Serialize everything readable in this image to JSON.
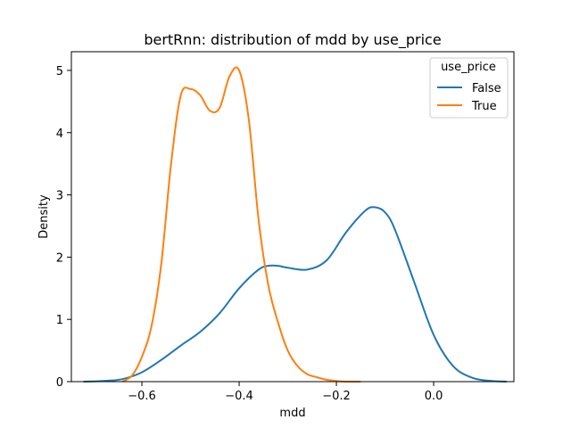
{
  "chart_data": {
    "type": "line",
    "title": "bertRnn: distribution of mdd by use_price",
    "xlabel": "mdd",
    "ylabel": "Density",
    "xlim": [
      -0.745,
      0.165
    ],
    "ylim": [
      0,
      5.3
    ],
    "xticks": [
      -0.6,
      -0.4,
      -0.2,
      0.0
    ],
    "xtick_labels": [
      "−0.6",
      "−0.4",
      "−0.2",
      "0.0"
    ],
    "yticks": [
      0,
      1,
      2,
      3,
      4,
      5
    ],
    "ytick_labels": [
      "0",
      "1",
      "2",
      "3",
      "4",
      "5"
    ],
    "grid": false,
    "legend": {
      "title": "use_price",
      "position": "top-right"
    },
    "series": [
      {
        "name": "False",
        "color": "#1f77b4",
        "x": [
          -0.72,
          -0.68,
          -0.64,
          -0.6,
          -0.56,
          -0.52,
          -0.48,
          -0.44,
          -0.4,
          -0.36,
          -0.34,
          -0.32,
          -0.3,
          -0.26,
          -0.22,
          -0.18,
          -0.14,
          -0.12,
          -0.1,
          -0.08,
          -0.04,
          0.0,
          0.04,
          0.08,
          0.12,
          0.15
        ],
        "y": [
          0.0,
          0.01,
          0.04,
          0.15,
          0.35,
          0.58,
          0.8,
          1.1,
          1.5,
          1.8,
          1.86,
          1.86,
          1.83,
          1.8,
          1.95,
          2.4,
          2.75,
          2.8,
          2.72,
          2.45,
          1.6,
          0.75,
          0.25,
          0.06,
          0.01,
          0.0
        ]
      },
      {
        "name": "True",
        "color": "#ff7f0e",
        "x": [
          -0.64,
          -0.62,
          -0.6,
          -0.58,
          -0.56,
          -0.54,
          -0.52,
          -0.5,
          -0.48,
          -0.46,
          -0.44,
          -0.42,
          -0.4,
          -0.38,
          -0.36,
          -0.34,
          -0.32,
          -0.3,
          -0.28,
          -0.26,
          -0.24,
          -0.22,
          -0.2,
          -0.18,
          -0.16,
          -0.15
        ],
        "y": [
          0.0,
          0.1,
          0.4,
          0.9,
          1.9,
          3.5,
          4.6,
          4.7,
          4.6,
          4.35,
          4.4,
          4.9,
          5.0,
          4.2,
          2.6,
          1.55,
          0.95,
          0.5,
          0.25,
          0.12,
          0.07,
          0.03,
          0.01,
          0.0,
          0.0,
          0.0
        ]
      }
    ]
  }
}
